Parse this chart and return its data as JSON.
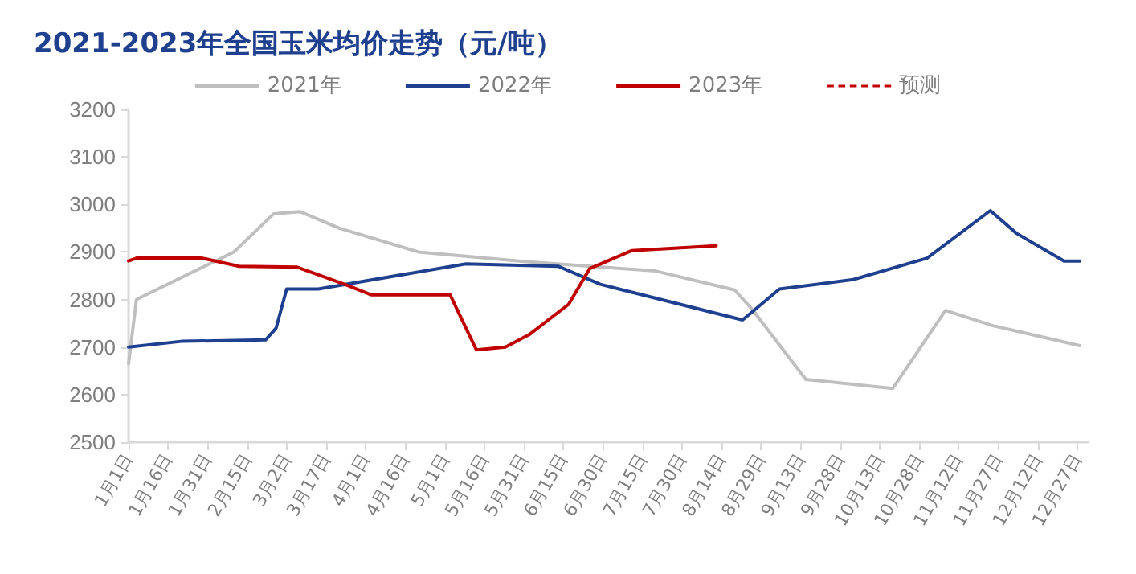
{
  "chart_data": {
    "type": "line",
    "title": "2021-2023年全国玉米均价走势（元/吨）",
    "xlim": [
      "--01-01",
      "--12-31"
    ],
    "xticks": [
      {
        "value": "--01-01",
        "label": "1月1日"
      },
      {
        "value": "--01-16",
        "label": "1月16日"
      },
      {
        "value": "--01-31",
        "label": "1月31日"
      },
      {
        "value": "--02-15",
        "label": "2月15日"
      },
      {
        "value": "--03-02",
        "label": "3月2日"
      },
      {
        "value": "--03-17",
        "label": "3月17日"
      },
      {
        "value": "--04-01",
        "label": "4月1日"
      },
      {
        "value": "--04-16",
        "label": "4月16日"
      },
      {
        "value": "--05-01",
        "label": "5月1日"
      },
      {
        "value": "--05-16",
        "label": "5月16日"
      },
      {
        "value": "--05-31",
        "label": "5月31日"
      },
      {
        "value": "--06-15",
        "label": "6月15日"
      },
      {
        "value": "--06-30",
        "label": "6月30日"
      },
      {
        "value": "--07-15",
        "label": "7月15日"
      },
      {
        "value": "--07-30",
        "label": "7月30日"
      },
      {
        "value": "--08-14",
        "label": "8月14日"
      },
      {
        "value": "--08-29",
        "label": "8月29日"
      },
      {
        "value": "--09-13",
        "label": "9月13日"
      },
      {
        "value": "--09-28",
        "label": "9月28日"
      },
      {
        "value": "--10-13",
        "label": "10月13日"
      },
      {
        "value": "--10-28",
        "label": "10月28日"
      },
      {
        "value": "--11-12",
        "label": "11月12日"
      },
      {
        "value": "--11-27",
        "label": "11月27日"
      },
      {
        "value": "--12-12",
        "label": "12月12日"
      },
      {
        "value": "--12-27",
        "label": "12月27日"
      }
    ],
    "ylim": [
      2500,
      3200
    ],
    "yticks": [
      2500,
      2600,
      2700,
      2800,
      2900,
      3000,
      3100,
      3200
    ],
    "grid": false,
    "legend": "top",
    "marker": "none",
    "series": [
      {
        "name": "2021年",
        "color": "#bfbfbf",
        "x": [
          "--01-01",
          "--01-04",
          "--02-10",
          "--02-25",
          "--03-07",
          "--03-22",
          "--04-21",
          "--05-31",
          "--07-20",
          "--08-19",
          "--08-26",
          "--09-15",
          "--10-18",
          "--11-07",
          "--11-25",
          "--12-28"
        ],
        "values": [
          2665,
          2800,
          2900,
          2980,
          2985,
          2950,
          2900,
          2880,
          2860,
          2820,
          2777,
          2632,
          2613,
          2777,
          2745,
          2703
        ]
      },
      {
        "name": "2022年",
        "color": "#1f3f8f",
        "x": [
          "--01-01",
          "--01-21",
          "--02-22",
          "--02-26",
          "--03-02",
          "--03-14",
          "--05-09",
          "--06-13",
          "--06-29",
          "--08-22",
          "--09-05",
          "--10-03",
          "--10-31",
          "--11-24",
          "--12-04",
          "--12-22",
          "--12-28"
        ],
        "values": [
          2700,
          2712,
          2715,
          2740,
          2822,
          2822,
          2875,
          2870,
          2832,
          2757,
          2822,
          2842,
          2887,
          2987,
          2939,
          2881,
          2881
        ]
      },
      {
        "name": "2023年",
        "color": "#c00000",
        "x": [
          "--01-01",
          "--01-04",
          "--01-29",
          "--02-12",
          "--03-06",
          "--03-24",
          "--04-03",
          "--05-03",
          "--05-13",
          "--05-24",
          "--06-02",
          "--06-17",
          "--06-25",
          "--07-11",
          "--08-12"
        ],
        "values": [
          2881,
          2887,
          2887,
          2870,
          2868,
          2832,
          2810,
          2810,
          2694,
          2700,
          2726,
          2790,
          2865,
          2903,
          2913
        ]
      },
      {
        "name": "预测",
        "color": "#c00000",
        "line_style": "dashed"
      }
    ]
  }
}
